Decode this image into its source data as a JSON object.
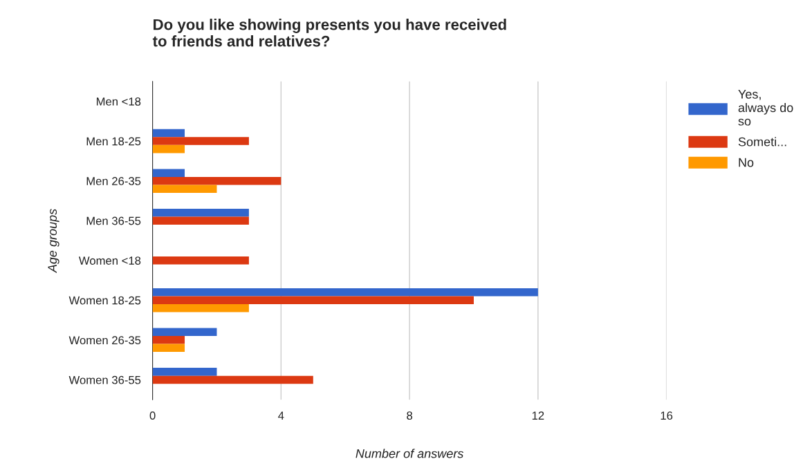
{
  "chart_data": {
    "type": "bar",
    "orientation": "horizontal",
    "title": "Do you like showing presents you have received\nto friends and relatives?",
    "xlabel": "Number of answers",
    "ylabel": "Age groups",
    "categories": [
      "Men <18",
      "Men 18-25",
      "Men 26-35",
      "Men 36-55",
      "Women <18",
      "Women 18-25",
      "Women 26-35",
      "Women 36-55"
    ],
    "series": [
      {
        "name": "Yes,\nalways do\nso",
        "color": "#3366cc",
        "values": [
          null,
          1,
          1,
          3,
          null,
          12,
          2,
          2
        ]
      },
      {
        "name": "Someti...",
        "color": "#dc3912",
        "values": [
          null,
          3,
          4,
          3,
          3,
          10,
          1,
          5
        ]
      },
      {
        "name": "No",
        "color": "#ff9900",
        "values": [
          null,
          1,
          2,
          null,
          null,
          3,
          1,
          null
        ]
      }
    ],
    "xlim": [
      0,
      16
    ],
    "xticks": [
      0,
      4,
      8,
      12,
      16
    ],
    "grid": "x",
    "legend": "top right"
  }
}
